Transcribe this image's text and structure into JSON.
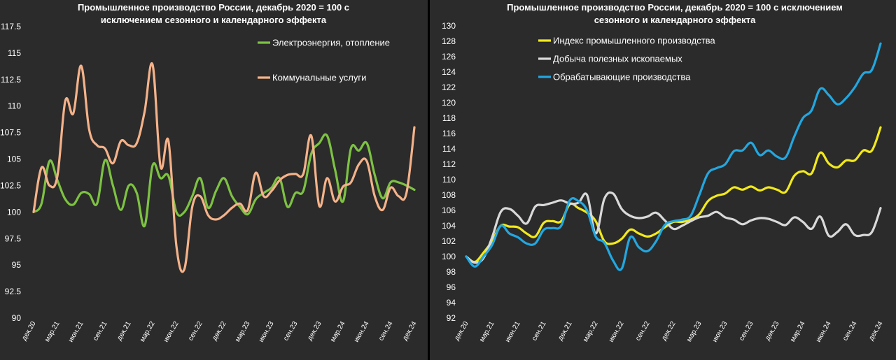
{
  "chart_data": [
    {
      "type": "line",
      "title_lines": [
        "Промышленное производство России, декабрь 2020 = 100 с",
        "исключением сезонного и календарного эффекта"
      ],
      "ylim": [
        90,
        117.5
      ],
      "yticks": [
        "90",
        "92.5",
        "95",
        "97.5",
        "100",
        "102.5",
        "105",
        "107.5",
        "110",
        "112.5",
        "115",
        "117.5"
      ],
      "ytick_values": [
        90,
        92.5,
        95,
        97.5,
        100,
        102.5,
        105,
        107.5,
        110,
        112.5,
        115,
        117.5
      ],
      "xtick_labels": [
        "дек.20",
        "мар.21",
        "июн.21",
        "сен.21",
        "дек.21",
        "мар.22",
        "июн.22",
        "сен.22",
        "дек.22",
        "мар.23",
        "июн.23",
        "сен.23",
        "дек.23",
        "мар.24",
        "июн.24",
        "сен.24",
        "дек.24"
      ],
      "n_points": 49,
      "grid": false,
      "legend_position": "top-right",
      "series": [
        {
          "name": "Электроэнергия, отопление",
          "color": "#7dc242",
          "values": [
            100,
            100.8,
            104.8,
            103,
            101.2,
            100.7,
            101.8,
            101.7,
            100.8,
            104.9,
            102.5,
            100.2,
            102.5,
            101.8,
            98.7,
            104.4,
            103.2,
            103.4,
            100,
            100,
            101.5,
            103.2,
            100.4,
            102,
            103.2,
            101.5,
            100.5,
            99.8,
            101.2,
            101.8,
            102.3,
            103.2,
            100.5,
            101.8,
            102,
            105.5,
            106.5,
            107.2,
            104,
            101,
            106,
            105.8,
            106.5,
            103.5,
            101.3,
            102.8,
            102.8,
            102.5,
            102.1
          ]
        },
        {
          "name": "Коммунальные услуги",
          "color": "#f4b28a",
          "values": [
            100,
            104.2,
            102.5,
            103.4,
            110.5,
            109.3,
            113.8,
            107.8,
            106.3,
            106,
            104.6,
            106.7,
            106.3,
            106.5,
            109.5,
            113.9,
            104.3,
            106.7,
            96.8,
            94.6,
            100.5,
            101.5,
            99.7,
            99.3,
            99.7,
            100.4,
            100.8,
            100.2,
            103.7,
            101.5,
            102,
            103,
            103.5,
            103.6,
            103.6,
            107.2,
            100.6,
            103.2,
            101,
            102.4,
            102.8,
            104.5,
            104.8,
            101.5,
            100.2,
            102.3,
            101.5,
            101.8,
            108
          ]
        }
      ]
    },
    {
      "type": "line",
      "title_lines": [
        "Промышленное производство России, декабрь 2020 = 100 с исключением",
        "сезонного и календарного эффекта"
      ],
      "ylim": [
        92,
        130
      ],
      "yticks": [
        "92",
        "94",
        "96",
        "98",
        "100",
        "102",
        "104",
        "106",
        "108",
        "110",
        "112",
        "114",
        "116",
        "118",
        "120",
        "122",
        "124",
        "126",
        "128",
        "130"
      ],
      "ytick_values": [
        92,
        94,
        96,
        98,
        100,
        102,
        104,
        106,
        108,
        110,
        112,
        114,
        116,
        118,
        120,
        122,
        124,
        126,
        128,
        130
      ],
      "xtick_labels": [
        "дек.20",
        "мар.21",
        "июн.21",
        "сен.21",
        "дек.21",
        "мар.22",
        "июн.22",
        "сен.22",
        "дек.22",
        "мар.23",
        "июн.23",
        "сен.23",
        "дек.23",
        "мар.24",
        "июн.24",
        "сен.24",
        "дек.24"
      ],
      "n_points": 49,
      "grid": false,
      "legend_position": "top-left",
      "series": [
        {
          "name": "Индекс промышленного производства",
          "color": "#f2e91b",
          "values": [
            100,
            99.3,
            100.5,
            102,
            104,
            103.9,
            103.8,
            103,
            102.6,
            104.4,
            104.6,
            104.6,
            106.8,
            106.3,
            105.7,
            104.6,
            102,
            101.7,
            102.3,
            103.5,
            103,
            102.6,
            103,
            103.8,
            104.5,
            104.5,
            104.8,
            105.5,
            107.2,
            107.9,
            108.2,
            109,
            108.7,
            109.1,
            108.6,
            109,
            108.7,
            108.4,
            110.5,
            111.1,
            110.8,
            113.5,
            112.1,
            111.6,
            112.5,
            112.5,
            113.8,
            113.8,
            116.8
          ]
        },
        {
          "name": "Добыча полезных ископаемых",
          "color": "#d9d9d9",
          "values": [
            100,
            99.2,
            99.8,
            102.5,
            105.8,
            106.2,
            105.3,
            104.3,
            106.5,
            106.7,
            107,
            107.3,
            106.9,
            107,
            108,
            103,
            107.5,
            108.2,
            106.2,
            105.3,
            105,
            105.2,
            105.7,
            104.7,
            103.6,
            104,
            104.6,
            105.1,
            105.3,
            105.8,
            105.1,
            104.8,
            104.2,
            104.7,
            105,
            104.9,
            104.5,
            104.1,
            105.1,
            104.5,
            103.6,
            105.2,
            102.7,
            103.2,
            104.2,
            102.8,
            102.8,
            103.2,
            106.3
          ]
        },
        {
          "name": "Обрабатывающие производства",
          "color": "#22a7e0",
          "values": [
            100,
            98.7,
            100,
            101.5,
            104,
            103,
            102.5,
            101.7,
            101.7,
            103.5,
            103.7,
            104,
            107.3,
            107.2,
            106,
            102.6,
            101.8,
            99.5,
            98.4,
            102.5,
            101.2,
            100.7,
            102,
            104.1,
            104.6,
            104.8,
            105.3,
            108,
            110.8,
            111.5,
            112,
            113.7,
            113.8,
            114.8,
            113.2,
            113.8,
            113,
            112.9,
            115.6,
            118,
            119,
            121.8,
            121,
            119.8,
            120.6,
            122,
            123.8,
            124.3,
            127.7
          ]
        }
      ]
    }
  ]
}
